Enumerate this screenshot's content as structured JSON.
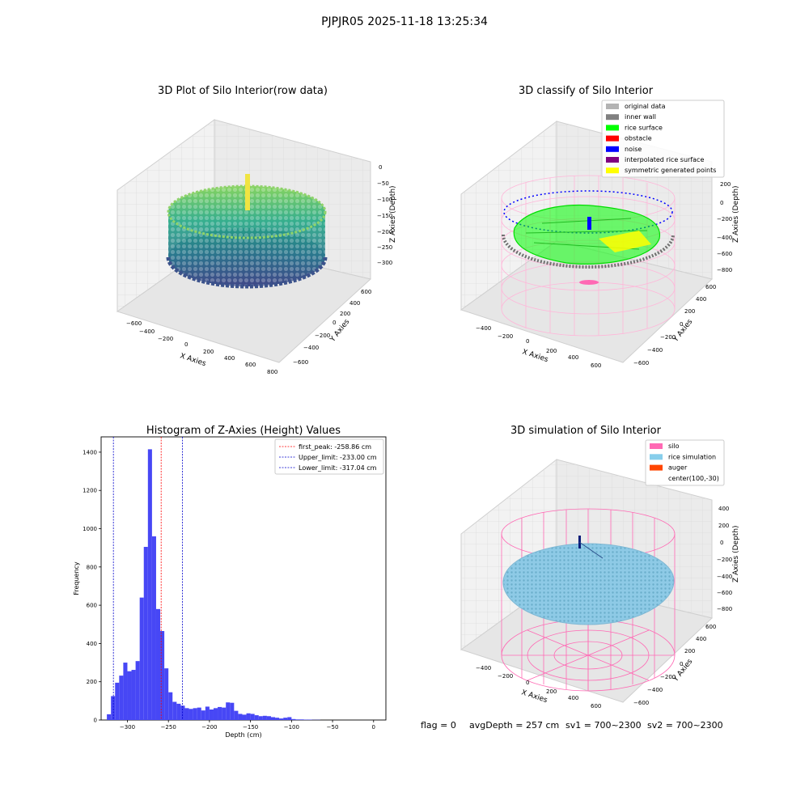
{
  "suptitle": "PJPJR05 2025-11-18 13:25:34",
  "footer": {
    "flag": "flag = 0",
    "avg_depth": "avgDepth = 257 cm",
    "sv1": "sv1 = 700~2300",
    "sv2": "sv2 = 700~2300"
  },
  "colors": {
    "histogram_bar": "#4747f5",
    "peak_line": "#ff0000",
    "limit_line": "#0000cc",
    "silo": "#ff69b4",
    "rice_simulation": "#87ceeb",
    "auger": "#ff4500",
    "rice_surface": "#00ff00",
    "noise": "#0000ff",
    "obstacle": "#ff0000",
    "inner_wall": "#808080",
    "original_data": "#b3b3b3",
    "interpolated": "#800080",
    "symmetric": "#ffff00"
  },
  "chart_data": [
    {
      "type": "scatter",
      "projection": "3d",
      "title": "3D Plot of Silo Interior(row data)",
      "xlabel": "X Axies",
      "ylabel": "Y Axies",
      "zlabel": "Z Axies (Depth)",
      "x_ticks": [
        "−600",
        "−400",
        "−200",
        "0",
        "200",
        "400",
        "600",
        "800"
      ],
      "y_ticks": [
        "−600",
        "−400",
        "−200",
        "0",
        "200",
        "400",
        "600"
      ],
      "z_ticks": [
        "0",
        "−50",
        "−100",
        "−150",
        "−200",
        "−250",
        "−300"
      ],
      "colormap": "viridis"
    },
    {
      "type": "scatter",
      "projection": "3d",
      "title": "3D classify of Silo Interior",
      "xlabel": "X Axies",
      "ylabel": "Y Axies",
      "zlabel": "Z Axies (Depth)",
      "x_ticks": [
        "−400",
        "−200",
        "0",
        "200",
        "400",
        "600"
      ],
      "y_ticks": [
        "−600",
        "−400",
        "−200",
        "0",
        "200",
        "400",
        "600"
      ],
      "z_ticks": [
        "200",
        "0",
        "−200",
        "−400",
        "−600",
        "−800"
      ],
      "legend": [
        {
          "label": "original data",
          "color": "#b3b3b3"
        },
        {
          "label": "inner wall",
          "color": "#808080"
        },
        {
          "label": "rice surface",
          "color": "#00ff00"
        },
        {
          "label": "obstacle",
          "color": "#ff0000"
        },
        {
          "label": "noise",
          "color": "#0000ff"
        },
        {
          "label": "interpolated rice surface",
          "color": "#800080"
        },
        {
          "label": "symmetric generated points",
          "color": "#ffff00"
        }
      ],
      "legend_placement": "top-right"
    },
    {
      "type": "bar",
      "title": "Histogram of Z-Axies (Height) Values",
      "xlabel": "Depth (cm)",
      "ylabel": "Frequency",
      "xlim": [
        -332,
        15
      ],
      "ylim": [
        0,
        1480
      ],
      "bin_width": 5,
      "bins_start": [
        -325,
        -320,
        -315,
        -310,
        -305,
        -300,
        -295,
        -290,
        -285,
        -280,
        -275,
        -270,
        -265,
        -260,
        -255,
        -250,
        -245,
        -240,
        -235,
        -230,
        -225,
        -220,
        -215,
        -210,
        -205,
        -200,
        -195,
        -190,
        -185,
        -180,
        -175,
        -170,
        -165,
        -160,
        -155,
        -150,
        -145,
        -140,
        -135,
        -130,
        -125,
        -120,
        -115,
        -110,
        -105,
        -100,
        -95,
        -90,
        -85,
        -80,
        -75,
        -70,
        -65,
        -60,
        -55,
        -50,
        -45,
        -40,
        -35,
        -30,
        -25,
        -20,
        -15,
        -10,
        -5,
        0
      ],
      "values": [
        30,
        125,
        195,
        232,
        300,
        255,
        262,
        308,
        640,
        905,
        1415,
        960,
        580,
        465,
        270,
        145,
        95,
        85,
        75,
        62,
        58,
        62,
        65,
        50,
        70,
        55,
        62,
        68,
        65,
        92,
        90,
        48,
        32,
        28,
        35,
        32,
        25,
        20,
        22,
        20,
        15,
        12,
        8,
        12,
        15,
        5,
        3,
        3,
        2,
        2,
        1,
        1,
        0,
        0,
        0,
        0,
        0,
        0,
        0,
        0,
        0,
        0,
        0,
        0,
        0,
        0
      ],
      "x_ticks": [
        -300,
        -250,
        -200,
        -150,
        -100,
        -50,
        0
      ],
      "y_ticks": [
        0,
        200,
        400,
        600,
        800,
        1000,
        1200,
        1400
      ],
      "vlines": [
        {
          "label": "first_peak: -258.86 cm",
          "x": -258.86,
          "color": "#ff0000"
        },
        {
          "label": "Upper_limit: -233.00 cm",
          "x": -233.0,
          "color": "#0000cc"
        },
        {
          "label": "Lower_limit: -317.04 cm",
          "x": -317.04,
          "color": "#0000cc"
        }
      ],
      "legend_placement": "top-right"
    },
    {
      "type": "scatter",
      "projection": "3d",
      "title": "3D simulation of Silo Interior",
      "xlabel": "X Axies",
      "ylabel": "Y Axies",
      "zlabel": "Z Axies (Depth)",
      "x_ticks": [
        "−400",
        "−200",
        "0",
        "200",
        "400",
        "600"
      ],
      "y_ticks": [
        "−600",
        "−400",
        "−200",
        "0",
        "200",
        "400",
        "600"
      ],
      "z_ticks": [
        "400",
        "200",
        "0",
        "−200",
        "−400",
        "−600",
        "−800"
      ],
      "legend": [
        {
          "label": "silo",
          "color": "#ff69b4"
        },
        {
          "label": "rice simulation",
          "color": "#87ceeb"
        },
        {
          "label": "auger",
          "color": "#ff4500"
        },
        {
          "label": "center(100,-30)",
          "color": ""
        }
      ],
      "legend_placement": "top-right"
    }
  ]
}
